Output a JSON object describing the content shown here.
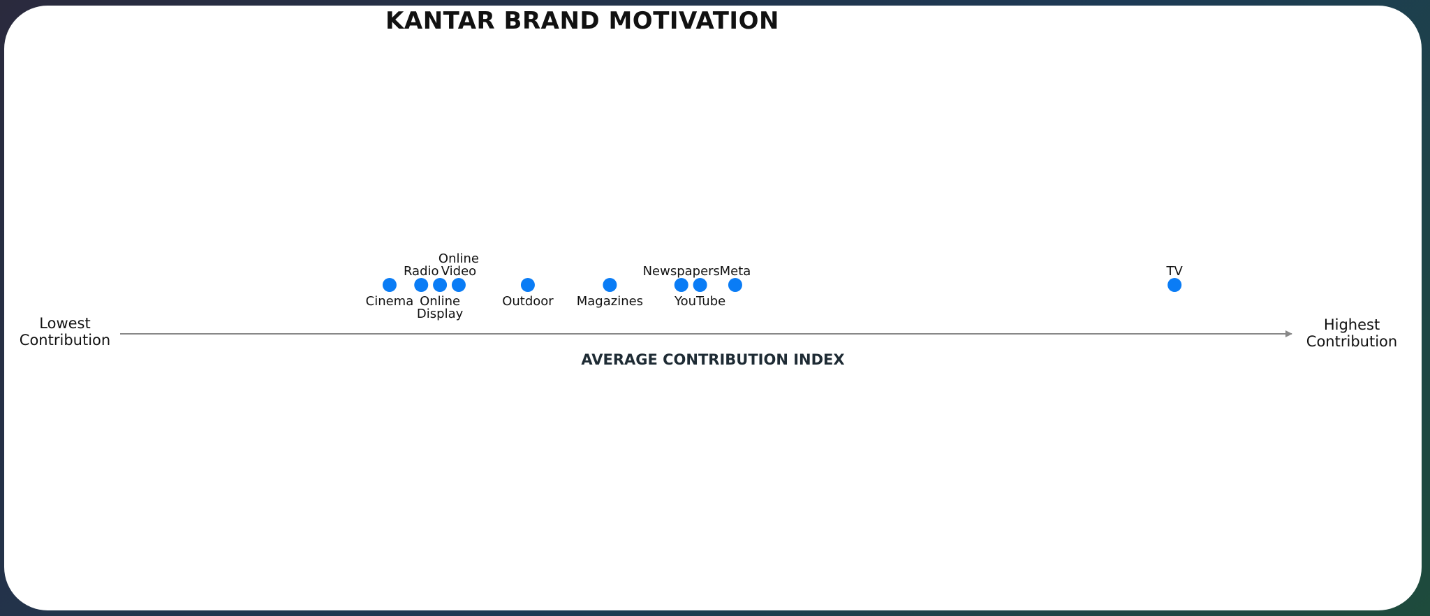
{
  "chart_data": {
    "type": "scatter",
    "title": "KANTAR BRAND MOTIVATION",
    "xlabel": "AVERAGE CONTRIBUTION INDEX",
    "axis_low_label": [
      "Lowest",
      "Contribution"
    ],
    "axis_high_label": [
      "Highest",
      "Contribution"
    ],
    "point_color": "#0a7cf5",
    "axis_color": "#888888",
    "points": [
      {
        "name": "Cinema",
        "label_lines": [
          "Cinema"
        ],
        "label_pos": "below",
        "x": 0.23
      },
      {
        "name": "Radio",
        "label_lines": [
          "Radio"
        ],
        "label_pos": "above",
        "x": 0.257
      },
      {
        "name": "Online Display",
        "label_lines": [
          "Online",
          "Display"
        ],
        "label_pos": "below",
        "x": 0.273
      },
      {
        "name": "Online Video",
        "label_lines": [
          "Online",
          "Video"
        ],
        "label_pos": "above",
        "x": 0.289
      },
      {
        "name": "Outdoor",
        "label_lines": [
          "Outdoor"
        ],
        "label_pos": "below",
        "x": 0.348
      },
      {
        "name": "Magazines",
        "label_lines": [
          "Magazines"
        ],
        "label_pos": "below",
        "x": 0.418
      },
      {
        "name": "Newspapers",
        "label_lines": [
          "Newspapers"
        ],
        "label_pos": "above",
        "x": 0.479
      },
      {
        "name": "YouTube",
        "label_lines": [
          "YouTube"
        ],
        "label_pos": "below",
        "x": 0.495
      },
      {
        "name": "Meta",
        "label_lines": [
          "Meta"
        ],
        "label_pos": "above",
        "x": 0.525
      },
      {
        "name": "TV",
        "label_lines": [
          "TV"
        ],
        "label_pos": "above",
        "x": 0.9
      }
    ]
  }
}
